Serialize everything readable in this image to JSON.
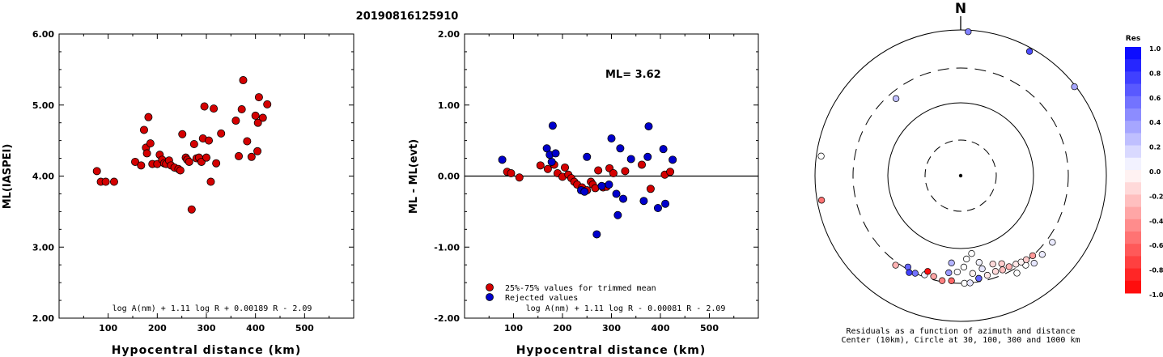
{
  "figure_title": "20190816125910",
  "chart_data": [
    {
      "type": "scatter",
      "xlabel": "Hypocentral distance (km)",
      "ylabel": "ML(IASPEI)",
      "xlim": [
        0,
        600
      ],
      "ylim": [
        2.0,
        6.0
      ],
      "xticks": [
        "100",
        "200",
        "300",
        "400",
        "500"
      ],
      "yticks": [
        "2.00",
        "3.00",
        "4.00",
        "5.00",
        "6.00"
      ],
      "formula": "log A(nm) + 1.11 log R + 0.00189 R - 2.09",
      "point_color": "#d40000",
      "points": [
        [
          77,
          4.07
        ],
        [
          85,
          3.92
        ],
        [
          95,
          3.92
        ],
        [
          112,
          3.92
        ],
        [
          155,
          4.2
        ],
        [
          167,
          4.15
        ],
        [
          173,
          4.65
        ],
        [
          177,
          4.4
        ],
        [
          179,
          4.32
        ],
        [
          182,
          4.83
        ],
        [
          186,
          4.46
        ],
        [
          190,
          4.17
        ],
        [
          200,
          4.17
        ],
        [
          205,
          4.3
        ],
        [
          210,
          4.23
        ],
        [
          214,
          4.18
        ],
        [
          218,
          4.17
        ],
        [
          224,
          4.22
        ],
        [
          228,
          4.15
        ],
        [
          235,
          4.12
        ],
        [
          243,
          4.1
        ],
        [
          247,
          4.08
        ],
        [
          251,
          4.59
        ],
        [
          258,
          4.26
        ],
        [
          261,
          4.23
        ],
        [
          265,
          4.2
        ],
        [
          270,
          3.53
        ],
        [
          275,
          4.45
        ],
        [
          280,
          4.25
        ],
        [
          285,
          4.26
        ],
        [
          290,
          4.2
        ],
        [
          293,
          4.53
        ],
        [
          296,
          4.98
        ],
        [
          300,
          4.26
        ],
        [
          305,
          4.5
        ],
        [
          309,
          3.92
        ],
        [
          315,
          4.95
        ],
        [
          320,
          4.18
        ],
        [
          330,
          4.6
        ],
        [
          360,
          4.78
        ],
        [
          366,
          4.28
        ],
        [
          372,
          4.94
        ],
        [
          375,
          5.35
        ],
        [
          383,
          4.49
        ],
        [
          392,
          4.27
        ],
        [
          400,
          4.85
        ],
        [
          404,
          4.35
        ],
        [
          407,
          5.11
        ],
        [
          415,
          4.82
        ],
        [
          424,
          5.01
        ],
        [
          405,
          4.75
        ]
      ]
    },
    {
      "type": "scatter",
      "xlabel": "Hypocentral distance (km)",
      "ylabel": "ML - ML(evt)",
      "xlim": [
        0,
        600
      ],
      "ylim": [
        -2.0,
        2.0
      ],
      "xticks": [
        "100",
        "200",
        "300",
        "400",
        "500"
      ],
      "yticks": [
        "-2.00",
        "-1.00",
        "0.00",
        "1.00",
        "2.00"
      ],
      "annotation": "ML= 3.62",
      "formula": "log A(nm) + 1.11 log R - 0.00081 R - 2.09",
      "legend": [
        {
          "label": "25%-75% values for trimmed mean",
          "color": "#d40000"
        },
        {
          "label": "Rejected values",
          "color": "#0000cc"
        }
      ],
      "series": [
        {
          "name": "25%-75% values for trimmed mean",
          "color": "#d40000",
          "points": [
            [
              87,
              0.06
            ],
            [
              95,
              0.04
            ],
            [
              112,
              -0.02
            ],
            [
              155,
              0.15
            ],
            [
              170,
              0.1
            ],
            [
              183,
              0.16
            ],
            [
              190,
              0.04
            ],
            [
              200,
              -0.01
            ],
            [
              205,
              0.12
            ],
            [
              212,
              0.02
            ],
            [
              218,
              -0.03
            ],
            [
              224,
              -0.08
            ],
            [
              230,
              -0.12
            ],
            [
              240,
              -0.16
            ],
            [
              250,
              -0.2
            ],
            [
              258,
              -0.08
            ],
            [
              262,
              -0.12
            ],
            [
              267,
              -0.17
            ],
            [
              273,
              0.08
            ],
            [
              283,
              -0.16
            ],
            [
              290,
              -0.15
            ],
            [
              296,
              0.11
            ],
            [
              304,
              0.04
            ],
            [
              328,
              0.07
            ],
            [
              362,
              0.16
            ],
            [
              380,
              -0.18
            ],
            [
              409,
              0.02
            ],
            [
              420,
              0.06
            ]
          ]
        },
        {
          "name": "Rejected values",
          "color": "#0000cc",
          "points": [
            [
              77,
              0.23
            ],
            [
              168,
              0.39
            ],
            [
              174,
              0.3
            ],
            [
              178,
              0.2
            ],
            [
              180,
              0.71
            ],
            [
              186,
              0.32
            ],
            [
              238,
              -0.2
            ],
            [
              245,
              -0.22
            ],
            [
              250,
              0.27
            ],
            [
              270,
              -0.82
            ],
            [
              280,
              -0.14
            ],
            [
              295,
              -0.12
            ],
            [
              300,
              0.53
            ],
            [
              310,
              -0.25
            ],
            [
              313,
              -0.55
            ],
            [
              318,
              0.39
            ],
            [
              324,
              -0.32
            ],
            [
              340,
              0.24
            ],
            [
              366,
              -0.35
            ],
            [
              374,
              0.27
            ],
            [
              376,
              0.7
            ],
            [
              395,
              -0.45
            ],
            [
              406,
              0.38
            ],
            [
              410,
              -0.39
            ],
            [
              425,
              0.23
            ]
          ]
        }
      ]
    },
    {
      "type": "polar-scatter",
      "north_label": "N",
      "caption_line1": "Residuals as a function of azimuth and distance",
      "caption_line2": "Center (10km), Circle at 30, 100, 300 and 1000 km",
      "colorbar_title": "Res",
      "colorbar_ticks": [
        "1.0",
        "0.8",
        "0.6",
        "0.4",
        "0.2",
        "0.0",
        "-0.2",
        "-0.4",
        "-0.6",
        "-0.8",
        "-1.0"
      ],
      "stations": [
        {
          "az": 3,
          "dist": 950,
          "res": 0.5
        },
        {
          "az": 29,
          "dist": 890,
          "res": 0.7
        },
        {
          "az": 52,
          "dist": 960,
          "res": 0.35
        },
        {
          "az": 278,
          "dist": 860,
          "res": 0.0
        },
        {
          "az": 260,
          "dist": 870,
          "res": -0.55
        },
        {
          "az": 320,
          "dist": 240,
          "res": 0.25
        },
        {
          "az": 126,
          "dist": 360,
          "res": 0.08
        },
        {
          "az": 134,
          "dist": 360,
          "res": 0.08
        },
        {
          "az": 140,
          "dist": 370,
          "res": 0.1
        },
        {
          "az": 144,
          "dist": 330,
          "res": 0.0
        },
        {
          "az": 150,
          "dist": 350,
          "res": 0.0
        },
        {
          "az": 170,
          "dist": 270,
          "res": 0.02
        },
        {
          "az": 178,
          "dist": 300,
          "res": 0.0
        },
        {
          "az": 175,
          "dist": 300,
          "res": 0.1
        },
        {
          "az": 200,
          "dist": 280,
          "res": 0.05
        },
        {
          "az": 205,
          "dist": 300,
          "res": 0.55
        },
        {
          "az": 210,
          "dist": 280,
          "res": 0.6
        },
        {
          "az": 208,
          "dist": 320,
          "res": 0.75
        },
        {
          "az": 216,
          "dist": 330,
          "res": -0.3
        },
        {
          "az": 199,
          "dist": 245,
          "res": -0.95
        },
        {
          "az": 195,
          "dist": 270,
          "res": -0.35
        },
        {
          "az": 190,
          "dist": 290,
          "res": -0.5
        },
        {
          "az": 185,
          "dist": 280,
          "res": -0.6
        },
        {
          "az": 170,
          "dist": 270,
          "res": 0.6
        },
        {
          "az": 165,
          "dist": 260,
          "res": -0.1
        },
        {
          "az": 160,
          "dist": 250,
          "res": -0.15
        },
        {
          "az": 156,
          "dist": 260,
          "res": -0.25
        },
        {
          "az": 152,
          "dist": 260,
          "res": -0.3
        },
        {
          "az": 148,
          "dist": 270,
          "res": -0.1
        },
        {
          "az": 145,
          "dist": 280,
          "res": -0.05
        },
        {
          "az": 142,
          "dist": 290,
          "res": -0.2
        },
        {
          "az": 138,
          "dist": 300,
          "res": -0.4
        },
        {
          "az": 187,
          "dist": 220,
          "res": 0.4
        },
        {
          "az": 182,
          "dist": 210,
          "res": 0.02
        },
        {
          "az": 178,
          "dist": 180,
          "res": 0.0
        },
        {
          "az": 186,
          "dist": 160,
          "res": 0.3
        },
        {
          "az": 176,
          "dist": 140,
          "res": 0.0
        },
        {
          "az": 172,
          "dist": 120,
          "res": 0.0
        },
        {
          "az": 168,
          "dist": 165,
          "res": 0.05
        },
        {
          "az": 160,
          "dist": 195,
          "res": -0.15
        },
        {
          "az": 155,
          "dist": 215,
          "res": -0.2
        },
        {
          "az": 167,
          "dist": 205,
          "res": 0.1
        },
        {
          "az": 173,
          "dist": 225,
          "res": -0.05
        }
      ]
    }
  ]
}
